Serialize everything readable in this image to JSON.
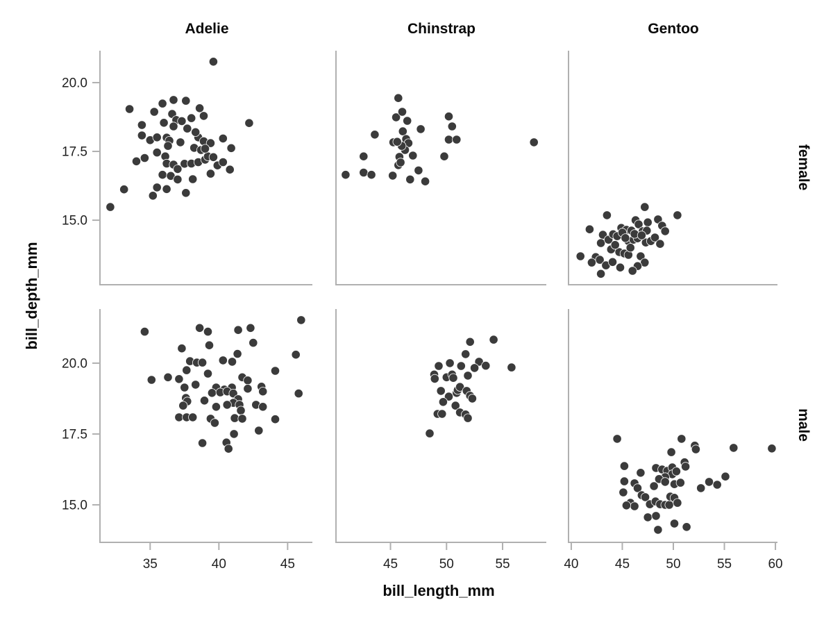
{
  "chart_data": {
    "type": "scatter",
    "title": "",
    "xlabel": "bill_length_mm",
    "ylabel": "bill_depth_mm",
    "legend": "none",
    "grid": "off",
    "facet_cols": [
      "Adelie",
      "Chinstrap",
      "Gentoo"
    ],
    "facet_rows": [
      "female",
      "male"
    ],
    "point_color": "#3b3b3b",
    "spine_color": "#b0b0b0",
    "tick_label_color": "#1f1f1f",
    "col_axes": [
      {
        "xlim": [
          31.4,
          46.8
        ],
        "xticks": [
          35,
          40,
          45
        ],
        "xtick_labels": [
          "35",
          "40",
          "45"
        ]
      },
      {
        "xlim": [
          40.2,
          58.9
        ],
        "xticks": [
          45,
          50,
          55
        ],
        "xtick_labels": [
          "45",
          "50",
          "55"
        ]
      },
      {
        "xlim": [
          39.8,
          60.2
        ],
        "xticks": [
          40,
          45,
          50,
          55,
          60
        ],
        "xtick_labels": [
          "40",
          "45",
          "50",
          "55",
          "60"
        ]
      }
    ],
    "row_axes": [
      {
        "ylim": [
          12.68,
          21.16
        ],
        "yticks": [
          20.0,
          17.5,
          15.0
        ],
        "ytick_labels": [
          "20.0",
          "17.5",
          "15.0"
        ]
      },
      {
        "ylim": [
          13.7,
          21.91
        ],
        "yticks": [
          20.0,
          17.5,
          15.0
        ],
        "ytick_labels": [
          "20.0",
          "17.5",
          "15.0"
        ]
      }
    ],
    "facets": [
      {
        "row": "female",
        "col": "Adelie",
        "points": [
          [
            39.6,
            20.76
          ],
          [
            33.5,
            19.04
          ],
          [
            35.9,
            19.24
          ],
          [
            36.7,
            19.37
          ],
          [
            37.6,
            19.34
          ],
          [
            35.3,
            18.94
          ],
          [
            38.6,
            19.07
          ],
          [
            38.9,
            18.79
          ],
          [
            36.6,
            18.86
          ],
          [
            36.9,
            18.64
          ],
          [
            36.0,
            18.54
          ],
          [
            36.7,
            18.41
          ],
          [
            38.0,
            18.71
          ],
          [
            37.7,
            18.33
          ],
          [
            42.2,
            18.53
          ],
          [
            34.4,
            18.46
          ],
          [
            34.4,
            18.08
          ],
          [
            35.0,
            17.91
          ],
          [
            35.5,
            18.01
          ],
          [
            36.2,
            18.0
          ],
          [
            36.4,
            17.89
          ],
          [
            37.2,
            17.83
          ],
          [
            38.5,
            18.01
          ],
          [
            38.9,
            17.87
          ],
          [
            39.4,
            17.8
          ],
          [
            40.3,
            17.97
          ],
          [
            40.9,
            17.62
          ],
          [
            38.2,
            17.63
          ],
          [
            38.7,
            17.55
          ],
          [
            35.5,
            17.46
          ],
          [
            34.0,
            17.14
          ],
          [
            34.6,
            17.26
          ],
          [
            36.1,
            17.32
          ],
          [
            36.2,
            17.06
          ],
          [
            36.7,
            17.02
          ],
          [
            37.0,
            16.86
          ],
          [
            37.5,
            17.05
          ],
          [
            38.0,
            17.06
          ],
          [
            38.5,
            17.11
          ],
          [
            39.0,
            17.2
          ],
          [
            39.2,
            17.32
          ],
          [
            39.6,
            17.29
          ],
          [
            39.9,
            16.99
          ],
          [
            40.3,
            17.11
          ],
          [
            40.8,
            16.84
          ],
          [
            39.4,
            16.69
          ],
          [
            35.9,
            16.65
          ],
          [
            36.5,
            16.61
          ],
          [
            37.0,
            16.48
          ],
          [
            38.1,
            16.49
          ],
          [
            35.5,
            16.19
          ],
          [
            36.2,
            16.13
          ],
          [
            35.2,
            15.89
          ],
          [
            37.6,
            15.99
          ],
          [
            33.1,
            16.12
          ],
          [
            32.1,
            15.48
          ],
          [
            37.3,
            18.6
          ],
          [
            38.3,
            18.2
          ],
          [
            39.0,
            17.6
          ],
          [
            36.3,
            17.7
          ]
        ]
      },
      {
        "row": "female",
        "col": "Chinstrap",
        "points": [
          [
            45.7,
            19.44
          ],
          [
            45.5,
            18.74
          ],
          [
            46.05,
            18.94
          ],
          [
            46.5,
            18.61
          ],
          [
            43.6,
            18.11
          ],
          [
            46.1,
            18.23
          ],
          [
            47.7,
            18.31
          ],
          [
            45.25,
            17.83
          ],
          [
            46.4,
            17.95
          ],
          [
            46.6,
            17.8
          ],
          [
            46.3,
            17.55
          ],
          [
            42.6,
            17.32
          ],
          [
            45.8,
            17.3
          ],
          [
            45.7,
            17.0
          ],
          [
            45.9,
            17.1
          ],
          [
            47.0,
            17.35
          ],
          [
            49.8,
            17.32
          ],
          [
            50.2,
            18.77
          ],
          [
            50.5,
            18.41
          ],
          [
            50.2,
            17.93
          ],
          [
            50.9,
            17.93
          ],
          [
            57.8,
            17.83
          ],
          [
            41.0,
            16.65
          ],
          [
            42.6,
            16.73
          ],
          [
            43.3,
            16.65
          ],
          [
            45.2,
            16.62
          ],
          [
            46.75,
            16.48
          ],
          [
            47.5,
            16.81
          ],
          [
            48.1,
            16.41
          ],
          [
            46.0,
            17.7
          ],
          [
            45.6,
            17.85
          ]
        ]
      },
      {
        "row": "female",
        "col": "Gentoo",
        "points": [
          [
            47.2,
            15.48
          ],
          [
            50.4,
            15.18
          ],
          [
            43.5,
            15.18
          ],
          [
            41.8,
            14.67
          ],
          [
            46.3,
            15.0
          ],
          [
            46.6,
            14.85
          ],
          [
            47.5,
            14.92
          ],
          [
            48.5,
            15.03
          ],
          [
            48.9,
            14.8
          ],
          [
            44.9,
            14.72
          ],
          [
            45.4,
            14.65
          ],
          [
            45.9,
            14.62
          ],
          [
            47.0,
            14.6
          ],
          [
            47.4,
            14.62
          ],
          [
            49.2,
            14.6
          ],
          [
            43.1,
            14.47
          ],
          [
            42.9,
            14.17
          ],
          [
            43.65,
            14.29
          ],
          [
            44.1,
            14.49
          ],
          [
            44.5,
            14.42
          ],
          [
            45.6,
            14.24
          ],
          [
            46.1,
            14.29
          ],
          [
            46.5,
            14.34
          ],
          [
            47.3,
            14.19
          ],
          [
            47.8,
            14.24
          ],
          [
            48.2,
            14.37
          ],
          [
            48.7,
            14.14
          ],
          [
            43.9,
            13.94
          ],
          [
            44.7,
            13.84
          ],
          [
            45.2,
            13.79
          ],
          [
            45.6,
            13.74
          ],
          [
            40.9,
            13.69
          ],
          [
            42.4,
            13.66
          ],
          [
            42.8,
            13.56
          ],
          [
            42.0,
            13.46
          ],
          [
            43.4,
            13.36
          ],
          [
            44.05,
            13.48
          ],
          [
            46.8,
            13.69
          ],
          [
            47.2,
            13.46
          ],
          [
            46.5,
            13.33
          ],
          [
            44.8,
            13.28
          ],
          [
            46.0,
            13.16
          ],
          [
            42.9,
            13.05
          ],
          [
            45.0,
            14.55
          ],
          [
            46.2,
            14.5
          ],
          [
            45.3,
            14.35
          ],
          [
            46.9,
            14.45
          ],
          [
            44.3,
            14.1
          ],
          [
            45.8,
            14.0
          ]
        ]
      },
      {
        "row": "male",
        "col": "Adelie",
        "points": [
          [
            34.6,
            21.11
          ],
          [
            45.98,
            21.52
          ],
          [
            38.6,
            21.24
          ],
          [
            39.2,
            21.11
          ],
          [
            41.4,
            21.17
          ],
          [
            42.3,
            21.24
          ],
          [
            39.3,
            20.63
          ],
          [
            42.5,
            20.72
          ],
          [
            37.3,
            20.52
          ],
          [
            45.6,
            20.3
          ],
          [
            41.35,
            20.33
          ],
          [
            40.97,
            20.05
          ],
          [
            40.3,
            20.1
          ],
          [
            37.9,
            20.07
          ],
          [
            38.4,
            20.02
          ],
          [
            38.8,
            20.02
          ],
          [
            37.65,
            19.75
          ],
          [
            39.2,
            19.63
          ],
          [
            44.1,
            19.73
          ],
          [
            35.1,
            19.41
          ],
          [
            36.3,
            19.5
          ],
          [
            37.1,
            19.44
          ],
          [
            41.7,
            19.5
          ],
          [
            42.1,
            19.39
          ],
          [
            38.3,
            19.24
          ],
          [
            37.5,
            19.14
          ],
          [
            42.1,
            19.1
          ],
          [
            39.8,
            19.14
          ],
          [
            40.4,
            19.07
          ],
          [
            40.95,
            19.14
          ],
          [
            43.1,
            19.17
          ],
          [
            43.2,
            19.0
          ],
          [
            45.8,
            18.93
          ],
          [
            37.6,
            18.77
          ],
          [
            37.7,
            18.65
          ],
          [
            38.95,
            18.68
          ],
          [
            39.5,
            18.95
          ],
          [
            40.1,
            18.97
          ],
          [
            40.6,
            19.0
          ],
          [
            41.05,
            18.93
          ],
          [
            41.4,
            18.73
          ],
          [
            41.05,
            18.6
          ],
          [
            40.6,
            18.53
          ],
          [
            41.5,
            18.53
          ],
          [
            37.4,
            18.5
          ],
          [
            39.8,
            18.46
          ],
          [
            41.6,
            18.33
          ],
          [
            42.7,
            18.53
          ],
          [
            43.2,
            18.46
          ],
          [
            37.1,
            18.09
          ],
          [
            37.65,
            18.09
          ],
          [
            38.1,
            18.09
          ],
          [
            39.4,
            18.04
          ],
          [
            39.7,
            17.89
          ],
          [
            41.15,
            18.06
          ],
          [
            41.7,
            18.04
          ],
          [
            44.1,
            18.02
          ],
          [
            42.9,
            17.62
          ],
          [
            41.1,
            17.5
          ],
          [
            38.8,
            17.18
          ],
          [
            40.55,
            17.2
          ],
          [
            40.7,
            16.98
          ]
        ]
      },
      {
        "row": "male",
        "col": "Chinstrap",
        "points": [
          [
            52.1,
            20.75
          ],
          [
            54.2,
            20.83
          ],
          [
            51.7,
            20.32
          ],
          [
            52.9,
            20.05
          ],
          [
            53.5,
            19.91
          ],
          [
            55.8,
            19.85
          ],
          [
            49.3,
            19.9
          ],
          [
            50.3,
            20.0
          ],
          [
            51.3,
            19.9
          ],
          [
            52.5,
            19.83
          ],
          [
            48.9,
            19.6
          ],
          [
            48.95,
            19.45
          ],
          [
            50.0,
            19.5
          ],
          [
            50.5,
            19.6
          ],
          [
            50.6,
            19.48
          ],
          [
            51.9,
            19.56
          ],
          [
            49.5,
            19.02
          ],
          [
            50.2,
            18.82
          ],
          [
            50.9,
            18.95
          ],
          [
            51.0,
            19.05
          ],
          [
            51.2,
            19.16
          ],
          [
            51.8,
            19.02
          ],
          [
            52.1,
            18.85
          ],
          [
            52.3,
            18.75
          ],
          [
            49.7,
            18.63
          ],
          [
            50.8,
            18.5
          ],
          [
            49.2,
            18.21
          ],
          [
            49.6,
            18.21
          ],
          [
            51.2,
            18.26
          ],
          [
            51.7,
            18.19
          ],
          [
            51.9,
            18.06
          ],
          [
            48.5,
            17.52
          ]
        ]
      },
      {
        "row": "male",
        "col": "Gentoo",
        "points": [
          [
            44.5,
            17.33
          ],
          [
            50.8,
            17.33
          ],
          [
            52.1,
            17.09
          ],
          [
            52.2,
            16.96
          ],
          [
            49.8,
            16.86
          ],
          [
            55.9,
            17.01
          ],
          [
            59.65,
            16.99
          ],
          [
            45.2,
            16.37
          ],
          [
            46.8,
            16.13
          ],
          [
            48.3,
            16.3
          ],
          [
            48.9,
            16.25
          ],
          [
            49.4,
            16.2
          ],
          [
            49.9,
            16.32
          ],
          [
            49.9,
            16.08
          ],
          [
            50.3,
            16.18
          ],
          [
            51.1,
            16.5
          ],
          [
            51.2,
            16.35
          ],
          [
            49.2,
            15.98
          ],
          [
            48.6,
            15.91
          ],
          [
            48.1,
            15.66
          ],
          [
            49.2,
            15.81
          ],
          [
            50.1,
            15.73
          ],
          [
            50.7,
            15.78
          ],
          [
            45.2,
            15.83
          ],
          [
            46.2,
            15.76
          ],
          [
            46.5,
            15.59
          ],
          [
            45.1,
            15.44
          ],
          [
            52.7,
            15.59
          ],
          [
            53.5,
            15.81
          ],
          [
            54.3,
            15.71
          ],
          [
            55.1,
            16.0
          ],
          [
            46.9,
            15.34
          ],
          [
            47.25,
            15.27
          ],
          [
            47.7,
            15.02
          ],
          [
            48.25,
            15.12
          ],
          [
            48.7,
            15.02
          ],
          [
            49.2,
            15.0
          ],
          [
            49.6,
            15.0
          ],
          [
            49.7,
            15.29
          ],
          [
            50.1,
            15.25
          ],
          [
            50.4,
            15.07
          ],
          [
            45.8,
            15.07
          ],
          [
            46.2,
            14.95
          ],
          [
            45.4,
            14.98
          ],
          [
            47.5,
            14.56
          ],
          [
            48.3,
            14.61
          ],
          [
            48.5,
            14.12
          ],
          [
            50.1,
            14.34
          ],
          [
            51.3,
            14.22
          ]
        ]
      }
    ]
  }
}
